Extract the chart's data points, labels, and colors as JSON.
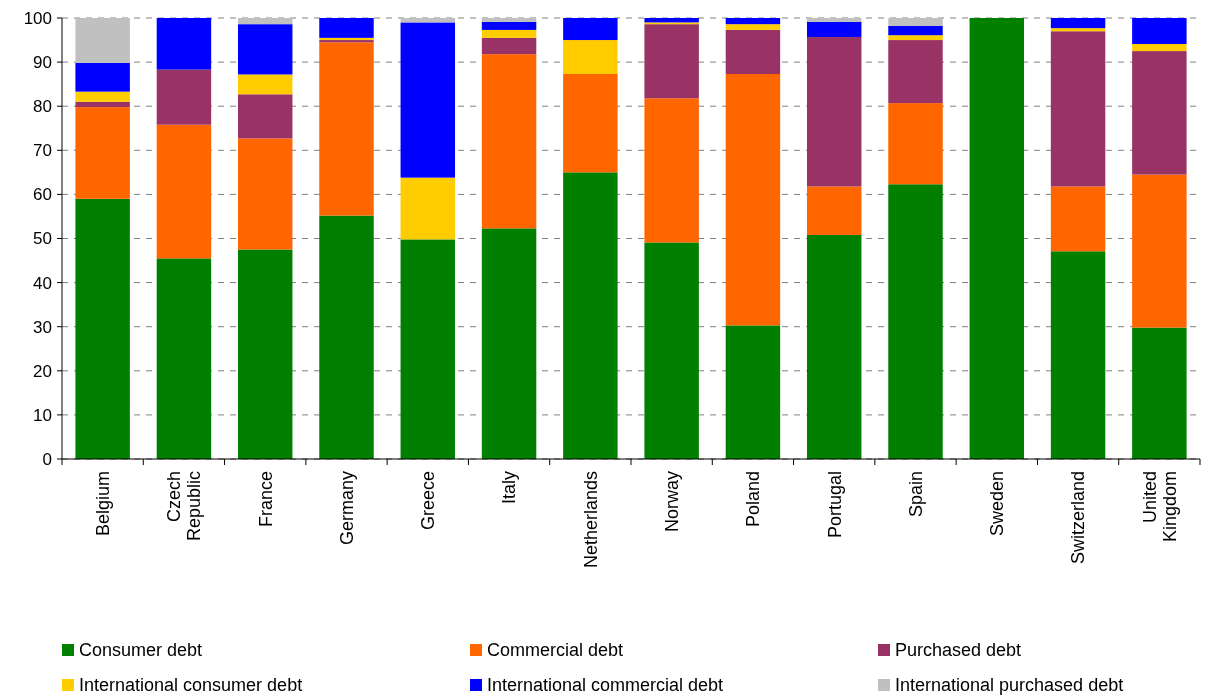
{
  "chart_data": {
    "type": "bar",
    "stacked": true,
    "categories": [
      "Belgium",
      "Czech Republic",
      "France",
      "Germany",
      "Greece",
      "Italy",
      "Netherlands",
      "Norway",
      "Poland",
      "Portugal",
      "Spain",
      "Sweden",
      "Switzerland",
      "United Kingdom"
    ],
    "series": [
      {
        "name": "Consumer debt",
        "color": "#007f00",
        "values": [
          59,
          45.5,
          47.5,
          55.2,
          49.8,
          52.3,
          65,
          49.1,
          30.3,
          50.8,
          62.3,
          100,
          47.1,
          29.8
        ]
      },
      {
        "name": "Commercial debt",
        "color": "#ff6600",
        "values": [
          20.8,
          30.3,
          25.2,
          39.3,
          0,
          39.5,
          22.3,
          32.7,
          57,
          11,
          18.4,
          0,
          14.7,
          34.7
        ]
      },
      {
        "name": "Purchased debt",
        "color": "#993366",
        "values": [
          1.2,
          12.5,
          10,
          0.5,
          0,
          3.7,
          0,
          16.8,
          10,
          33.9,
          14.3,
          0,
          35.2,
          28
        ]
      },
      {
        "name": "International consumer debt",
        "color": "#ffcc00",
        "values": [
          2.3,
          0,
          4.5,
          0.5,
          14,
          1.8,
          7.7,
          0.4,
          1.3,
          0,
          1.1,
          0,
          0.7,
          1.6
        ]
      },
      {
        "name": "International commercial debt",
        "color": "#0000ff",
        "values": [
          6.5,
          11.7,
          11.4,
          4.5,
          35.2,
          1.8,
          5,
          1,
          1.4,
          3.4,
          2.1,
          0,
          2.3,
          5.9
        ]
      },
      {
        "name": "International purchased debt",
        "color": "#c0c0c0",
        "values": [
          10.2,
          0,
          1.4,
          0,
          1,
          0.9,
          0,
          0,
          0,
          0.9,
          1.8,
          0,
          0,
          0
        ]
      }
    ],
    "ylim": [
      0,
      100
    ],
    "yticks": [
      0,
      10,
      20,
      30,
      40,
      50,
      60,
      70,
      80,
      90,
      100
    ],
    "grid": "y",
    "legend": "bottom"
  }
}
